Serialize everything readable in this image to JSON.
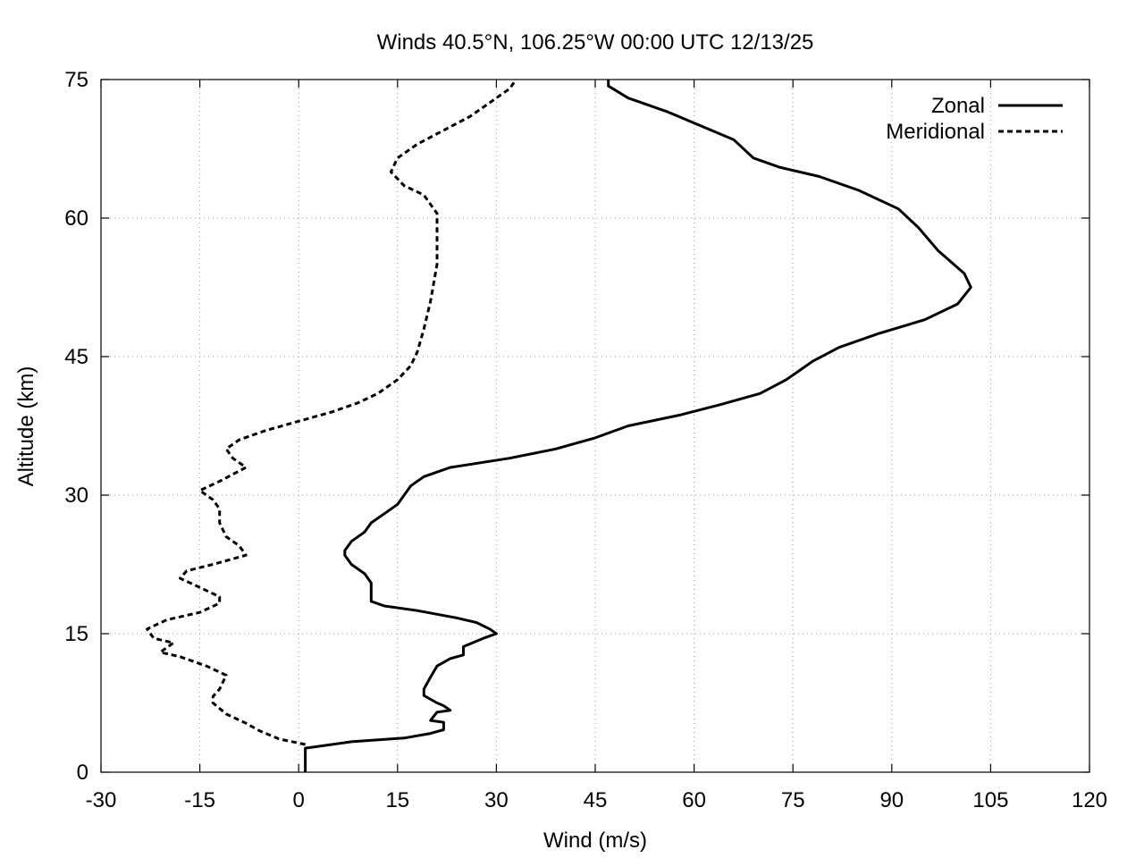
{
  "chart_data": {
    "type": "line",
    "title": "Winds 40.5°N, 106.25°W 00:00 UTC 12/13/25",
    "xlabel": "Wind (m/s)",
    "ylabel": "Altitude (km)",
    "xlim": [
      -30,
      120
    ],
    "ylim": [
      0,
      75
    ],
    "xticks": [
      -30,
      -15,
      0,
      15,
      30,
      45,
      60,
      75,
      90,
      105,
      120
    ],
    "yticks": [
      0,
      15,
      30,
      45,
      60,
      75
    ],
    "grid": true,
    "legend_position": "top-right",
    "series": [
      {
        "name": "Zonal",
        "style": "solid",
        "color": "#000000",
        "points": [
          [
            1,
            0
          ],
          [
            1,
            1
          ],
          [
            1,
            2.6
          ],
          [
            8,
            3.3
          ],
          [
            16,
            3.7
          ],
          [
            20,
            4.2
          ],
          [
            22,
            4.6
          ],
          [
            22,
            5.4
          ],
          [
            20,
            5.6
          ],
          [
            21,
            6.5
          ],
          [
            23,
            6.7
          ],
          [
            22,
            7.2
          ],
          [
            21,
            7.5
          ],
          [
            19,
            8.3
          ],
          [
            19,
            9.0
          ],
          [
            20,
            10.3
          ],
          [
            21,
            11.5
          ],
          [
            23,
            12.3
          ],
          [
            25,
            12.7
          ],
          [
            25,
            13.6
          ],
          [
            28,
            14.5
          ],
          [
            30,
            15.0
          ],
          [
            29,
            15.5
          ],
          [
            27,
            16.2
          ],
          [
            24,
            16.7
          ],
          [
            18,
            17.5
          ],
          [
            13,
            18.0
          ],
          [
            11,
            18.5
          ],
          [
            11,
            19.5
          ],
          [
            11,
            20.5
          ],
          [
            10,
            21.5
          ],
          [
            8,
            22.5
          ],
          [
            7,
            23.5
          ],
          [
            7,
            24.0
          ],
          [
            8,
            25.0
          ],
          [
            10,
            26.0
          ],
          [
            11,
            27.0
          ],
          [
            13,
            28.0
          ],
          [
            15,
            29.0
          ],
          [
            16,
            30.0
          ],
          [
            17,
            31.0
          ],
          [
            19,
            32.0
          ],
          [
            23,
            33.0
          ],
          [
            32,
            34.0
          ],
          [
            39,
            35.0
          ],
          [
            45,
            36.2
          ],
          [
            50,
            37.5
          ],
          [
            58,
            38.7
          ],
          [
            64,
            39.8
          ],
          [
            70,
            41.0
          ],
          [
            74,
            42.5
          ],
          [
            76,
            43.5
          ],
          [
            78,
            44.5
          ],
          [
            82,
            46.0
          ],
          [
            88,
            47.5
          ],
          [
            95,
            49.0
          ],
          [
            100,
            50.7
          ],
          [
            102,
            52.5
          ],
          [
            101,
            54.0
          ],
          [
            97,
            56.5
          ],
          [
            94,
            59.0
          ],
          [
            91,
            61.0
          ],
          [
            85,
            63.0
          ],
          [
            79,
            64.5
          ],
          [
            73,
            65.5
          ],
          [
            69,
            66.5
          ],
          [
            66,
            68.5
          ],
          [
            61,
            70.0
          ],
          [
            56,
            71.5
          ],
          [
            50,
            73.0
          ],
          [
            47,
            74.3
          ],
          [
            47,
            75
          ]
        ]
      },
      {
        "name": "Meridional",
        "style": "dashed",
        "color": "#000000",
        "points": [
          [
            1,
            3.0
          ],
          [
            -3,
            3.6
          ],
          [
            -6,
            4.5
          ],
          [
            -8,
            5.3
          ],
          [
            -11,
            6.3
          ],
          [
            -13,
            7.5
          ],
          [
            -13,
            8.2
          ],
          [
            -12,
            9.0
          ],
          [
            -11,
            10.5
          ],
          [
            -14,
            11.5
          ],
          [
            -18,
            12.5
          ],
          [
            -21,
            13.0
          ],
          [
            -19,
            14.0
          ],
          [
            -22,
            14.5
          ],
          [
            -23,
            15.5
          ],
          [
            -20,
            16.5
          ],
          [
            -15,
            17.3
          ],
          [
            -12,
            18.3
          ],
          [
            -12,
            19.0
          ],
          [
            -15,
            20.0
          ],
          [
            -18,
            21.0
          ],
          [
            -17,
            21.8
          ],
          [
            -13,
            22.5
          ],
          [
            -8,
            23.5
          ],
          [
            -9,
            24.5
          ],
          [
            -11,
            25.5
          ],
          [
            -12,
            27.0
          ],
          [
            -12,
            28.5
          ],
          [
            -13,
            29.5
          ],
          [
            -15,
            30.5
          ],
          [
            -12,
            31.5
          ],
          [
            -8,
            33.0
          ],
          [
            -10,
            34.0
          ],
          [
            -11,
            35.0
          ],
          [
            -9,
            36.0
          ],
          [
            -5,
            37.0
          ],
          [
            0,
            38.0
          ],
          [
            5,
            39.0
          ],
          [
            9,
            40.0
          ],
          [
            12,
            41.0
          ],
          [
            15,
            42.5
          ],
          [
            17,
            44.0
          ],
          [
            18,
            45.5
          ],
          [
            19,
            48.0
          ],
          [
            20,
            51.0
          ],
          [
            21,
            55.0
          ],
          [
            21,
            59.0
          ],
          [
            21,
            60.5
          ],
          [
            19,
            62.5
          ],
          [
            16,
            63.5
          ],
          [
            14,
            65.0
          ],
          [
            15,
            66.5
          ],
          [
            18,
            68.0
          ],
          [
            22,
            69.5
          ],
          [
            26,
            71.0
          ],
          [
            29,
            72.5
          ],
          [
            32,
            74.0
          ],
          [
            33,
            75
          ]
        ]
      }
    ]
  }
}
